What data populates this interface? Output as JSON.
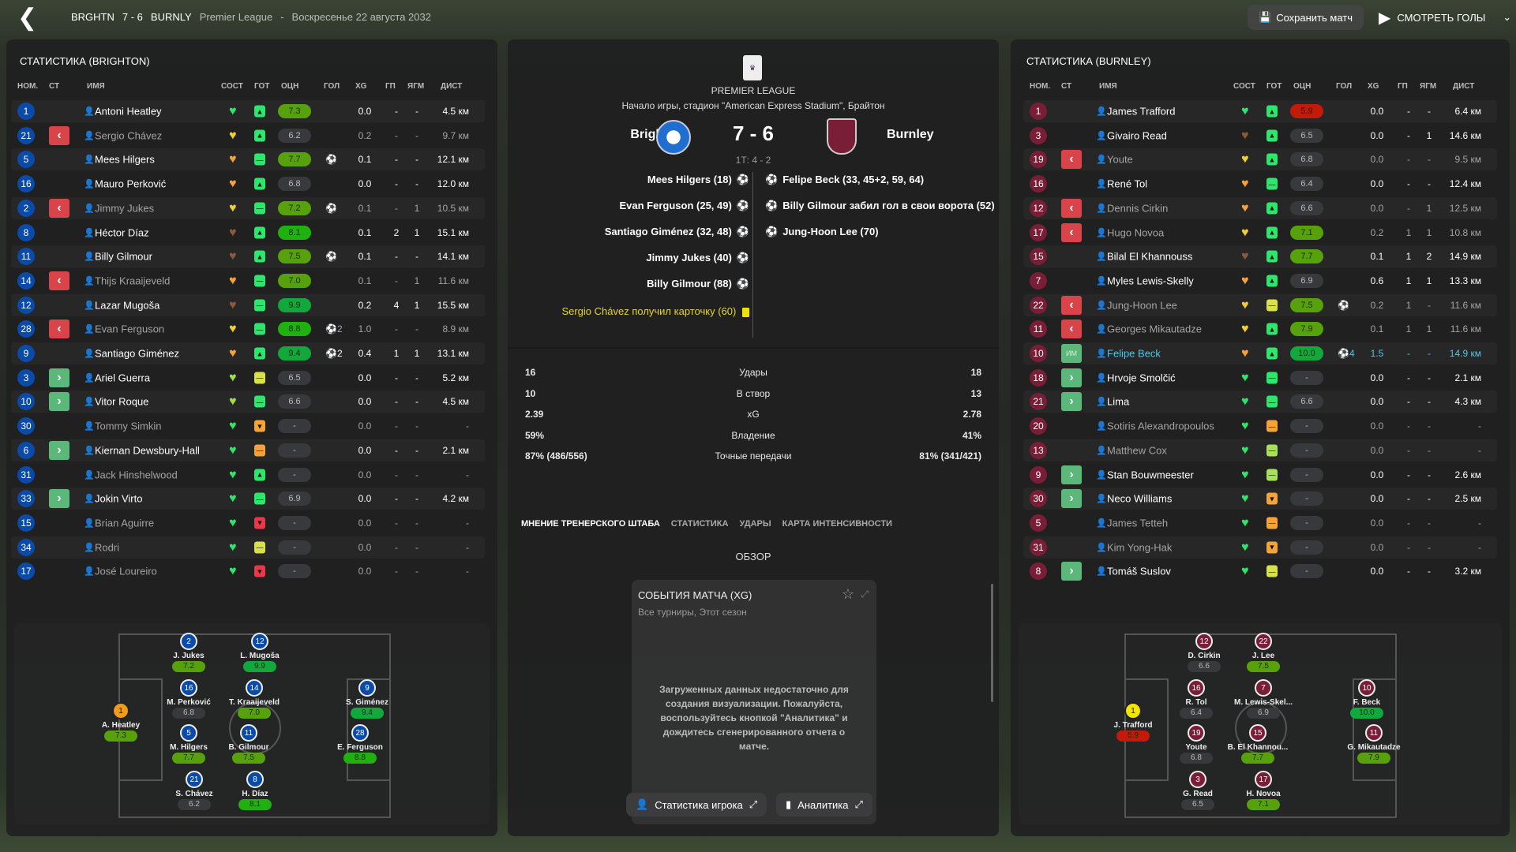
{
  "topbar": {
    "home_abbr": "BRGHTN",
    "score": "7 - 6",
    "away_abbr": "BURNLY",
    "competition": "Premier League",
    "separator": "-",
    "date": "Воскресенье 22 августа 2032",
    "save_label": "Сохранить матч",
    "goals_label": "СМОТРЕТЬ ГОЛЫ"
  },
  "columns": {
    "num": "НОМ.",
    "st": "СТ",
    "name": "ИМЯ",
    "cond": "СОСТ",
    "ready": "ГОТ",
    "rating": "ОЦН",
    "goals": "ГОЛ",
    "xg": "XG",
    "gp": "ГП",
    "ygm": "ЯГМ",
    "dist": "ДИСТ"
  },
  "colors": {
    "home": "#0a4aa8",
    "away": "#7a1e38",
    "rating_gray": "#38393c",
    "rating_olive": "#56a10c",
    "rating_green": "#20b010",
    "rating_top": "#12a83c",
    "rating_red": "#c41a0a"
  },
  "home": {
    "title": "СТАТИСТИКА (BRIGHTON)",
    "players": [
      {
        "num": "1",
        "sub": "",
        "name": "Antoni Heatley",
        "cond": "green",
        "ready": "up-green",
        "rating": "7.3",
        "goals": "",
        "xg": "0.0",
        "gp": "-",
        "ygm": "-",
        "dist": "4.5 км"
      },
      {
        "num": "21",
        "sub": "out",
        "name": "Sergio Chávez",
        "dim": true,
        "cond": "yellow",
        "ready": "up-green",
        "rating": "6.2",
        "goals": "",
        "xg": "0.2",
        "gp": "-",
        "ygm": "-",
        "dist": "9.7 км"
      },
      {
        "num": "5",
        "sub": "",
        "name": "Mees Hilgers",
        "cond": "orange",
        "ready": "mid-green",
        "rating": "7.7",
        "goals": "⚽",
        "xg": "0.1",
        "gp": "-",
        "ygm": "-",
        "dist": "12.1 км"
      },
      {
        "num": "16",
        "sub": "",
        "name": "Mauro Perković",
        "cond": "orange",
        "ready": "up-green",
        "rating": "6.8",
        "goals": "",
        "xg": "0.0",
        "gp": "-",
        "ygm": "-",
        "dist": "12.0 км"
      },
      {
        "num": "2",
        "sub": "out",
        "name": "Jimmy Jukes",
        "dim": true,
        "cond": "yellow",
        "ready": "mid-green",
        "rating": "7.2",
        "goals": "⚽",
        "xg": "0.1",
        "gp": "-",
        "ygm": "1",
        "dist": "10.5 км"
      },
      {
        "num": "8",
        "sub": "",
        "name": "Héctor Díaz",
        "cond": "brown",
        "ready": "up-green",
        "rating": "8.1",
        "goals": "",
        "xg": "0.1",
        "gp": "2",
        "ygm": "1",
        "dist": "15.1 км"
      },
      {
        "num": "11",
        "sub": "",
        "name": "Billy Gilmour",
        "cond": "brown",
        "ready": "up-green",
        "rating": "7.5",
        "goals": "⚽",
        "xg": "0.1",
        "gp": "-",
        "ygm": "-",
        "dist": "14.1 км"
      },
      {
        "num": "14",
        "sub": "out",
        "name": "Thijs Kraaijeveld",
        "dim": true,
        "cond": "orange",
        "ready": "mid-green",
        "rating": "7.0",
        "goals": "",
        "xg": "0.1",
        "gp": "-",
        "ygm": "1",
        "dist": "11.6 км"
      },
      {
        "num": "12",
        "sub": "",
        "name": "Lazar Mugoša",
        "cond": "brown",
        "ready": "mid-green",
        "rating": "9.9",
        "goals": "",
        "xg": "0.2",
        "gp": "4",
        "ygm": "1",
        "dist": "15.5 км"
      },
      {
        "num": "28",
        "sub": "out",
        "name": "Evan Ferguson",
        "dim": true,
        "cond": "yellow",
        "ready": "mid-green",
        "rating": "8.8",
        "goals": "⚽2",
        "xg": "1.0",
        "gp": "-",
        "ygm": "-",
        "dist": "8.9 км"
      },
      {
        "num": "9",
        "sub": "",
        "name": "Santiago Giménez",
        "cond": "orange",
        "ready": "up-green",
        "rating": "9.4",
        "goals": "⚽2",
        "xg": "0.4",
        "gp": "1",
        "ygm": "1",
        "dist": "13.1 км"
      },
      {
        "num": "3",
        "sub": "in",
        "name": "Ariel Guerra",
        "cond": "lime",
        "ready": "mid-yellow",
        "rating": "6.5",
        "goals": "",
        "xg": "0.0",
        "gp": "-",
        "ygm": "-",
        "dist": "5.2 км"
      },
      {
        "num": "10",
        "sub": "in",
        "name": "Vitor Roque",
        "cond": "lime",
        "ready": "mid-green",
        "rating": "6.6",
        "goals": "",
        "xg": "0.0",
        "gp": "-",
        "ygm": "-",
        "dist": "4.5 км"
      },
      {
        "num": "30",
        "sub": "",
        "name": "Tommy Simkin",
        "dim": true,
        "cond": "green",
        "ready": "down-orange",
        "rating": "-",
        "goals": "",
        "xg": "0.0",
        "gp": "-",
        "ygm": "-",
        "dist": "-"
      },
      {
        "num": "6",
        "sub": "in",
        "name": "Kiernan Dewsbury-Hall",
        "cond": "green",
        "ready": "mid-orange",
        "rating": "-",
        "goals": "",
        "xg": "0.0",
        "gp": "-",
        "ygm": "-",
        "dist": "2.1 км"
      },
      {
        "num": "31",
        "sub": "",
        "name": "Jack Hinshelwood",
        "dim": true,
        "cond": "green",
        "ready": "up-green",
        "rating": "-",
        "goals": "",
        "xg": "0.0",
        "gp": "-",
        "ygm": "-",
        "dist": "-"
      },
      {
        "num": "33",
        "sub": "in",
        "name": "Jokin Virto",
        "cond": "green",
        "ready": "mid-green",
        "rating": "6.9",
        "goals": "",
        "xg": "0.0",
        "gp": "-",
        "ygm": "-",
        "dist": "4.2 км"
      },
      {
        "num": "15",
        "sub": "",
        "name": "Brian Aguirre",
        "dim": true,
        "cond": "green",
        "ready": "down-red",
        "rating": "-",
        "goals": "",
        "xg": "0.0",
        "gp": "-",
        "ygm": "-",
        "dist": "-"
      },
      {
        "num": "34",
        "sub": "",
        "name": "Rodri",
        "dim": true,
        "cond": "green",
        "ready": "mid-yellow",
        "rating": "-",
        "goals": "",
        "xg": "0.0",
        "gp": "-",
        "ygm": "-",
        "dist": "-"
      },
      {
        "num": "17",
        "sub": "",
        "name": "José Loureiro",
        "dim": true,
        "cond": "green",
        "ready": "down-red",
        "rating": "-",
        "goals": "",
        "xg": "0.0",
        "gp": "-",
        "ygm": "-",
        "dist": "-"
      }
    ],
    "lineup": [
      {
        "num": "1",
        "name": "A. Heatley",
        "rating": "7.3",
        "gk": true
      },
      {
        "num": "2",
        "name": "J. Jukes",
        "rating": "7.2"
      },
      {
        "num": "12",
        "name": "L. Mugoša",
        "rating": "9.9"
      },
      {
        "num": "16",
        "name": "M. Perković",
        "rating": "6.8"
      },
      {
        "num": "14",
        "name": "T. Kraaijeveld",
        "rating": "7.0"
      },
      {
        "num": "5",
        "name": "M. Hilgers",
        "rating": "7.7"
      },
      {
        "num": "11",
        "name": "B. Gilmour",
        "rating": "7.5"
      },
      {
        "num": "21",
        "name": "S. Chávez",
        "rating": "6.2"
      },
      {
        "num": "8",
        "name": "H. Díaz",
        "rating": "8.1"
      },
      {
        "num": "9",
        "name": "S. Giménez",
        "rating": "9.4"
      },
      {
        "num": "28",
        "name": "E. Ferguson",
        "rating": "8.8"
      }
    ]
  },
  "away": {
    "title": "СТАТИСТИКА (BURNLEY)",
    "players": [
      {
        "num": "1",
        "sub": "",
        "name": "James Trafford",
        "cond": "green",
        "ready": "up-green",
        "rating": "5.9",
        "goals": "",
        "xg": "0.0",
        "gp": "-",
        "ygm": "-",
        "dist": "6.4 км"
      },
      {
        "num": "3",
        "sub": "",
        "name": "Givairo Read",
        "cond": "brown",
        "ready": "up-green",
        "rating": "6.5",
        "goals": "",
        "xg": "0.0",
        "gp": "-",
        "ygm": "1",
        "dist": "14.6 км"
      },
      {
        "num": "19",
        "sub": "out",
        "name": "Youte",
        "dim": true,
        "cond": "yellow",
        "ready": "up-green",
        "rating": "6.8",
        "goals": "",
        "xg": "0.0",
        "gp": "-",
        "ygm": "-",
        "dist": "9.5 км"
      },
      {
        "num": "16",
        "sub": "",
        "name": "René Tol",
        "cond": "orange",
        "ready": "mid-green",
        "rating": "6.4",
        "goals": "",
        "xg": "0.0",
        "gp": "-",
        "ygm": "-",
        "dist": "12.4 км"
      },
      {
        "num": "12",
        "sub": "out",
        "name": "Dennis Cirkin",
        "dim": true,
        "cond": "orange",
        "ready": "up-green",
        "rating": "6.6",
        "goals": "",
        "xg": "0.0",
        "gp": "-",
        "ygm": "1",
        "dist": "12.5 км"
      },
      {
        "num": "17",
        "sub": "out",
        "name": "Hugo Novoa",
        "dim": true,
        "cond": "yellow",
        "ready": "up-green",
        "rating": "7.1",
        "goals": "",
        "xg": "0.2",
        "gp": "1",
        "ygm": "1",
        "dist": "10.8 км"
      },
      {
        "num": "15",
        "sub": "",
        "name": "Bilal El Khannouss",
        "cond": "brown",
        "ready": "up-green",
        "rating": "7.7",
        "goals": "",
        "xg": "0.1",
        "gp": "1",
        "ygm": "2",
        "dist": "14.9 км"
      },
      {
        "num": "7",
        "sub": "",
        "name": "Myles Lewis-Skelly",
        "cond": "orange",
        "ready": "up-green",
        "rating": "6.9",
        "goals": "",
        "xg": "0.6",
        "gp": "1",
        "ygm": "1",
        "dist": "13.3 км"
      },
      {
        "num": "22",
        "sub": "out",
        "name": "Jung-Hoon Lee",
        "dim": true,
        "cond": "yellow",
        "ready": "mid-yellow",
        "rating": "7.5",
        "goals": "⚽",
        "xg": "0.2",
        "gp": "1",
        "ygm": "-",
        "dist": "11.6 км"
      },
      {
        "num": "11",
        "sub": "out",
        "name": "Georges Mikautadze",
        "dim": true,
        "cond": "yellow",
        "ready": "up-green",
        "rating": "7.9",
        "goals": "",
        "xg": "0.1",
        "gp": "1",
        "ygm": "1",
        "dist": "11.6 км"
      },
      {
        "num": "10",
        "sub": "im",
        "sub_label": "ИМ",
        "name": "Felipe Beck",
        "hl": true,
        "cond": "orange",
        "ready": "up-green",
        "rating": "10.0",
        "goals": "⚽4",
        "xg": "1.5",
        "gp": "-",
        "ygm": "-",
        "dist": "14.9 км"
      },
      {
        "num": "18",
        "sub": "in",
        "name": "Hrvoje Smolčić",
        "cond": "green",
        "ready": "mid-green",
        "rating": "-",
        "goals": "",
        "xg": "0.0",
        "gp": "-",
        "ygm": "-",
        "dist": "2.1 км"
      },
      {
        "num": "21",
        "sub": "in",
        "name": "Lima",
        "cond": "green",
        "ready": "mid-green",
        "rating": "6.6",
        "goals": "",
        "xg": "0.0",
        "gp": "-",
        "ygm": "-",
        "dist": "4.3 км"
      },
      {
        "num": "20",
        "sub": "",
        "name": "Sotiris Alexandropoulos",
        "dim": true,
        "cond": "green",
        "ready": "mid-orange",
        "rating": "-",
        "goals": "",
        "xg": "0.0",
        "gp": "-",
        "ygm": "-",
        "dist": "-"
      },
      {
        "num": "13",
        "sub": "",
        "name": "Matthew Cox",
        "dim": true,
        "cond": "green",
        "ready": "mid-lime",
        "rating": "-",
        "goals": "",
        "xg": "0.0",
        "gp": "-",
        "ygm": "-",
        "dist": "-"
      },
      {
        "num": "9",
        "sub": "in",
        "name": "Stan Bouwmeester",
        "cond": "green",
        "ready": "mid-lime",
        "rating": "-",
        "goals": "",
        "xg": "0.0",
        "gp": "-",
        "ygm": "-",
        "dist": "2.6 км"
      },
      {
        "num": "30",
        "sub": "in",
        "name": "Neco Williams",
        "cond": "green",
        "ready": "down-orange",
        "rating": "-",
        "goals": "",
        "xg": "0.0",
        "gp": "-",
        "ygm": "-",
        "dist": "2.5 км"
      },
      {
        "num": "5",
        "sub": "",
        "name": "James Tetteh",
        "dim": true,
        "cond": "green",
        "ready": "mid-orange",
        "rating": "-",
        "goals": "",
        "xg": "0.0",
        "gp": "-",
        "ygm": "-",
        "dist": "-"
      },
      {
        "num": "31",
        "sub": "",
        "name": "Kim Yong-Hak",
        "dim": true,
        "cond": "green",
        "ready": "down-orange",
        "rating": "-",
        "goals": "",
        "xg": "0.0",
        "gp": "-",
        "ygm": "-",
        "dist": "-"
      },
      {
        "num": "8",
        "sub": "in",
        "name": "Tomáš Suslov",
        "cond": "green",
        "ready": "mid-yellow",
        "rating": "-",
        "goals": "",
        "xg": "0.0",
        "gp": "-",
        "ygm": "-",
        "dist": "3.2 км"
      }
    ],
    "lineup": [
      {
        "num": "1",
        "name": "J. Trafford",
        "rating": "5.9",
        "gk": true
      },
      {
        "num": "12",
        "name": "D. Cirkin",
        "rating": "6.6"
      },
      {
        "num": "22",
        "name": "J. Lee",
        "rating": "7.5"
      },
      {
        "num": "16",
        "name": "R. Tol",
        "rating": "6.4"
      },
      {
        "num": "7",
        "name": "M. Lewis-Skel...",
        "rating": "6.9"
      },
      {
        "num": "19",
        "name": "Youte",
        "rating": "6.8"
      },
      {
        "num": "15",
        "name": "B. El Khannou...",
        "rating": "7.7"
      },
      {
        "num": "3",
        "name": "G. Read",
        "rating": "6.5"
      },
      {
        "num": "17",
        "name": "H. Novoa",
        "rating": "7.1"
      },
      {
        "num": "10",
        "name": "F. Beck",
        "rating": "10.0"
      },
      {
        "num": "11",
        "name": "G. Mikautadze",
        "rating": "7.9"
      }
    ]
  },
  "match": {
    "league": "PREMIER LEAGUE",
    "venue": "Начало игры, стадион \"American Express Stadium\", Брайтон",
    "home": "Brighton",
    "away": "Burnley",
    "score": "7 - 6",
    "half_time": "1Т: 4 - 2",
    "home_events": [
      "Mees Hilgers (18)",
      "Evan Ferguson (25, 49)",
      "Santiago Giménez (32, 48)",
      "Jimmy Jukes (40)",
      "Billy Gilmour (88)"
    ],
    "home_card": "Sergio Chávez получил карточку (60)",
    "away_events": [
      {
        "text": "Felipe Beck (33, 45+2, 59, 64)",
        "own": false
      },
      {
        "text": "Billy Gilmour забил гол в свои ворота (52)",
        "own": true
      },
      {
        "text": "Jung-Hoon Lee (70)",
        "own": false
      }
    ],
    "stats": [
      {
        "home": "16",
        "label": "Удары",
        "away": "18"
      },
      {
        "home": "10",
        "label": "В створ",
        "away": "13"
      },
      {
        "home": "2.39",
        "label": "xG",
        "away": "2.78"
      },
      {
        "home": "59%",
        "label": "Владение",
        "away": "41%"
      },
      {
        "home": "87% (486/556)",
        "label": "Точные передачи",
        "away": "81% (341/421)"
      }
    ],
    "tabs": [
      "МНЕНИЕ ТРЕНЕРСКОГО ШТАБА",
      "СТАТИСТИКА",
      "УДАРЫ",
      "КАРТА ИНТЕНСИВНОСТИ"
    ],
    "overview": "ОБЗОР",
    "card_title": "СОБЫТИЯ МАТЧА (XG)",
    "card_subtitle": "Все турниры, Этот сезон",
    "card_message": "Загруженных данных недостаточно для создания визуализации. Пожалуйста, воспользуйтесь кнопкой \"Аналитика\" и дождитесь сгенерированного отчета о матче.",
    "player_stats_btn": "Статистика игрока",
    "analytics_btn": "Аналитика"
  }
}
